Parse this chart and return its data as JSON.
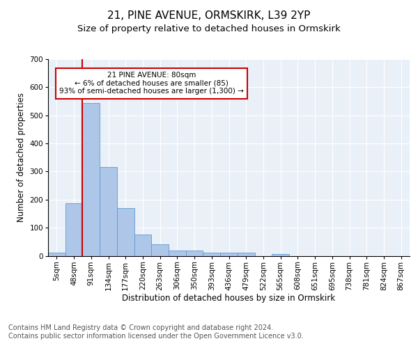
{
  "title1": "21, PINE AVENUE, ORMSKIRK, L39 2YP",
  "title2": "Size of property relative to detached houses in Ormskirk",
  "xlabel": "Distribution of detached houses by size in Ormskirk",
  "ylabel": "Number of detached properties",
  "bar_values": [
    10,
    188,
    545,
    315,
    170,
    76,
    40,
    18,
    18,
    12,
    12,
    12,
    0,
    6,
    0,
    0,
    0,
    0,
    0,
    0,
    0
  ],
  "bar_labels": [
    "5sqm",
    "48sqm",
    "91sqm",
    "134sqm",
    "177sqm",
    "220sqm",
    "263sqm",
    "306sqm",
    "350sqm",
    "393sqm",
    "436sqm",
    "479sqm",
    "522sqm",
    "565sqm",
    "608sqm",
    "651sqm",
    "695sqm",
    "738sqm",
    "781sqm",
    "824sqm",
    "867sqm"
  ],
  "bar_color": "#aec6e8",
  "bar_edge_color": "#5b9bd5",
  "vline_x_index": 2,
  "vline_color": "#cc0000",
  "annotation_text": "21 PINE AVENUE: 80sqm\n← 6% of detached houses are smaller (85)\n93% of semi-detached houses are larger (1,300) →",
  "annotation_box_color": "#ffffff",
  "annotation_box_edge": "#cc0000",
  "ylim": [
    0,
    700
  ],
  "yticks": [
    0,
    100,
    200,
    300,
    400,
    500,
    600,
    700
  ],
  "bg_color": "#eaf0f8",
  "footer_text": "Contains HM Land Registry data © Crown copyright and database right 2024.\nContains public sector information licensed under the Open Government Licence v3.0.",
  "title1_fontsize": 11,
  "title2_fontsize": 9.5,
  "xlabel_fontsize": 8.5,
  "ylabel_fontsize": 8.5,
  "footer_fontsize": 7,
  "tick_fontsize": 7.5,
  "annot_fontsize": 7.5
}
